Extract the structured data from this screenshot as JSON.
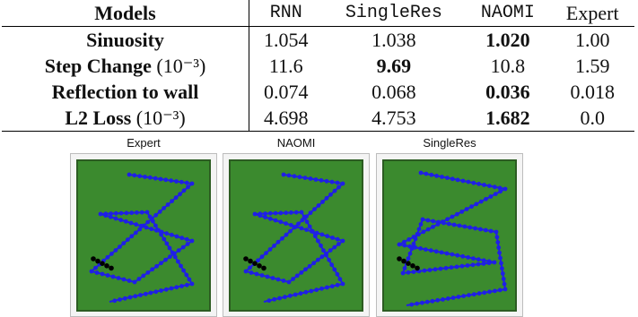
{
  "table": {
    "header": {
      "corner": "Models",
      "columns": [
        "RNN",
        "SingleRes",
        "NAOMI",
        "Expert"
      ]
    },
    "rows": [
      {
        "label": "Sinuosity",
        "unit": "",
        "values": [
          "1.054",
          "1.038",
          "1.020",
          "1.00"
        ],
        "best_index": 2
      },
      {
        "label": "Step Change",
        "unit": "(10⁻³)",
        "values": [
          "11.6",
          "9.69",
          "10.8",
          "1.59"
        ],
        "best_index": 1
      },
      {
        "label": "Reflection to wall",
        "unit": "",
        "values": [
          "0.074",
          "0.068",
          "0.036",
          "0.018"
        ],
        "best_index": 2
      },
      {
        "label": "L2 Loss",
        "unit": "(10⁻³)",
        "values": [
          "4.698",
          "4.753",
          "1.682",
          "0.0"
        ],
        "best_index": 2
      }
    ]
  },
  "figure": {
    "panels": [
      {
        "title": "Expert"
      },
      {
        "title": "NAOMI"
      },
      {
        "title": "SingleRes"
      }
    ],
    "colors": {
      "field": "#3b8a2e",
      "field_border": "#2c5c22",
      "trajectory": "#1f1fe6",
      "observed": "#000000"
    }
  }
}
